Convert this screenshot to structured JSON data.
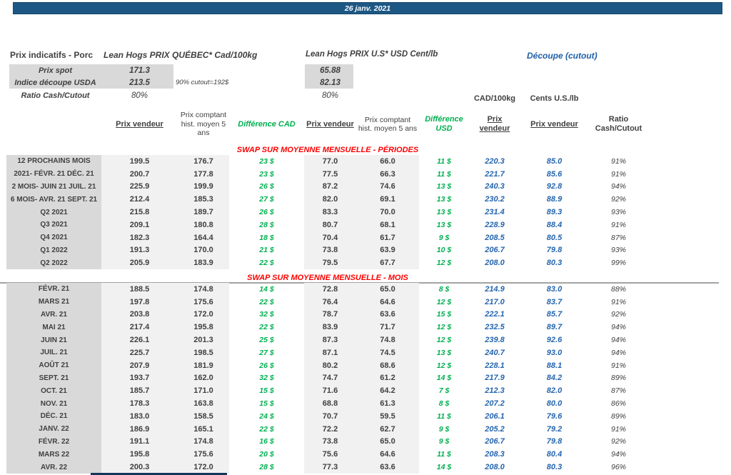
{
  "banner": {
    "date": "26 janv. 2021"
  },
  "summary": {
    "title": "Prix indicatifs - Porc",
    "quebec_title": "Lean Hogs PRIX QUÉBEC* Cad/100kg",
    "us_title": "Lean Hogs PRIX U.S* USD Cent/lb",
    "cutout_title": "Découpe (cutout)",
    "spot_label": "Prix spot",
    "spot_qc": "171.3",
    "spot_us": "65.88",
    "usda_label": "Indice découpe USDA",
    "usda_qc": "213.5",
    "usda_us": "82.13",
    "usda_note": "90% cutout=192$",
    "ratio_label": "Ratio Cash/Cutout",
    "ratio_qc": "80%",
    "ratio_us": "80%"
  },
  "units": {
    "cad": "CAD/100kg",
    "cents": "Cents U.S./lb"
  },
  "columns": {
    "pv_cad": "Prix vendeur",
    "hist_cad": "Prix comptant hist. moyen 5 ans",
    "diff_cad": "Différence CAD",
    "pv_usd": "Prix vendeur",
    "hist_usd": "Prix comptant hist. moyen 5 ans",
    "diff_usd": "Différence USD",
    "cutout_cad": "Prix vendeur",
    "cutout_cents": "Prix vendeur",
    "ratio": "Ratio Cash/Cutout"
  },
  "colors": {
    "banner_blue": "#1d5885",
    "accent_blue": "#1f5fa6",
    "value_blue": "#2565ae",
    "diff_green": "#00b050",
    "section_red": "#ff0000"
  },
  "sections": [
    {
      "title": "SWAP SUR MOYENNE MENSUELLE - PÉRIODES",
      "rows": [
        {
          "label": "12 PROCHAINS MOIS",
          "pv_cad": "199.5",
          "hist_cad": "176.7",
          "diff_cad": "23 $",
          "pv_usd": "77.0",
          "hist_usd": "66.0",
          "diff_usd": "11 $",
          "cutout_cad": "220.3",
          "cutout_cents": "85.0",
          "ratio": "91%"
        },
        {
          "label": "2021- FÉVR. 21 DÉC. 21",
          "pv_cad": "200.7",
          "hist_cad": "177.8",
          "diff_cad": "23 $",
          "pv_usd": "77.5",
          "hist_usd": "66.3",
          "diff_usd": "11 $",
          "cutout_cad": "221.7",
          "cutout_cents": "85.6",
          "ratio": "91%"
        },
        {
          "label": "2 MOIS- JUIN 21 JUIL. 21",
          "pv_cad": "225.9",
          "hist_cad": "199.9",
          "diff_cad": "26 $",
          "pv_usd": "87.2",
          "hist_usd": "74.6",
          "diff_usd": "13 $",
          "cutout_cad": "240.3",
          "cutout_cents": "92.8",
          "ratio": "94%"
        },
        {
          "label": "6 MOIS- AVR. 21 SEPT. 21",
          "pv_cad": "212.4",
          "hist_cad": "185.3",
          "diff_cad": "27 $",
          "pv_usd": "82.0",
          "hist_usd": "69.1",
          "diff_usd": "13 $",
          "cutout_cad": "230.2",
          "cutout_cents": "88.9",
          "ratio": "92%"
        },
        {
          "label": "Q2 2021",
          "pv_cad": "215.8",
          "hist_cad": "189.7",
          "diff_cad": "26 $",
          "pv_usd": "83.3",
          "hist_usd": "70.0",
          "diff_usd": "13 $",
          "cutout_cad": "231.4",
          "cutout_cents": "89.3",
          "ratio": "93%"
        },
        {
          "label": "Q3 2021",
          "pv_cad": "209.1",
          "hist_cad": "180.8",
          "diff_cad": "28 $",
          "pv_usd": "80.7",
          "hist_usd": "68.1",
          "diff_usd": "13 $",
          "cutout_cad": "228.9",
          "cutout_cents": "88.4",
          "ratio": "91%"
        },
        {
          "label": "Q4 2021",
          "pv_cad": "182.3",
          "hist_cad": "164.4",
          "diff_cad": "18 $",
          "pv_usd": "70.4",
          "hist_usd": "61.7",
          "diff_usd": "9 $",
          "cutout_cad": "208.5",
          "cutout_cents": "80.5",
          "ratio": "87%"
        },
        {
          "label": "Q1 2022",
          "pv_cad": "191.3",
          "hist_cad": "170.0",
          "diff_cad": "21 $",
          "pv_usd": "73.8",
          "hist_usd": "63.9",
          "diff_usd": "10 $",
          "cutout_cad": "206.7",
          "cutout_cents": "79.8",
          "ratio": "93%"
        },
        {
          "label": "Q2 2022",
          "pv_cad": "205.9",
          "hist_cad": "183.9",
          "diff_cad": "22 $",
          "pv_usd": "79.5",
          "hist_usd": "67.7",
          "diff_usd": "12 $",
          "cutout_cad": "208.0",
          "cutout_cents": "80.3",
          "ratio": "99%"
        }
      ]
    },
    {
      "title": "SWAP SUR MOYENNE MENSUELLE - MOIS",
      "rows": [
        {
          "label": "FÉVR. 21",
          "pv_cad": "188.5",
          "hist_cad": "174.8",
          "diff_cad": "14 $",
          "pv_usd": "72.8",
          "hist_usd": "65.0",
          "diff_usd": "8 $",
          "cutout_cad": "214.9",
          "cutout_cents": "83.0",
          "ratio": "88%"
        },
        {
          "label": "MARS 21",
          "pv_cad": "197.8",
          "hist_cad": "175.6",
          "diff_cad": "22 $",
          "pv_usd": "76.4",
          "hist_usd": "64.6",
          "diff_usd": "12 $",
          "cutout_cad": "217.0",
          "cutout_cents": "83.7",
          "ratio": "91%"
        },
        {
          "label": "AVR. 21",
          "pv_cad": "203.8",
          "hist_cad": "172.0",
          "diff_cad": "32 $",
          "pv_usd": "78.7",
          "hist_usd": "63.6",
          "diff_usd": "15 $",
          "cutout_cad": "222.1",
          "cutout_cents": "85.7",
          "ratio": "92%"
        },
        {
          "label": "MAI 21",
          "pv_cad": "217.4",
          "hist_cad": "195.8",
          "diff_cad": "22 $",
          "pv_usd": "83.9",
          "hist_usd": "71.7",
          "diff_usd": "12 $",
          "cutout_cad": "232.5",
          "cutout_cents": "89.7",
          "ratio": "94%"
        },
        {
          "label": "JUIN 21",
          "pv_cad": "226.1",
          "hist_cad": "201.3",
          "diff_cad": "25 $",
          "pv_usd": "87.3",
          "hist_usd": "74.8",
          "diff_usd": "12 $",
          "cutout_cad": "239.8",
          "cutout_cents": "92.6",
          "ratio": "94%"
        },
        {
          "label": "JUIL. 21",
          "pv_cad": "225.7",
          "hist_cad": "198.5",
          "diff_cad": "27 $",
          "pv_usd": "87.1",
          "hist_usd": "74.5",
          "diff_usd": "13 $",
          "cutout_cad": "240.7",
          "cutout_cents": "93.0",
          "ratio": "94%"
        },
        {
          "label": "AOÛT 21",
          "pv_cad": "207.9",
          "hist_cad": "181.9",
          "diff_cad": "26 $",
          "pv_usd": "80.2",
          "hist_usd": "68.6",
          "diff_usd": "12 $",
          "cutout_cad": "228.1",
          "cutout_cents": "88.1",
          "ratio": "91%"
        },
        {
          "label": "SEPT. 21",
          "pv_cad": "193.7",
          "hist_cad": "162.0",
          "diff_cad": "32 $",
          "pv_usd": "74.7",
          "hist_usd": "61.2",
          "diff_usd": "14 $",
          "cutout_cad": "217.9",
          "cutout_cents": "84.2",
          "ratio": "89%"
        },
        {
          "label": "OCT. 21",
          "pv_cad": "185.7",
          "hist_cad": "171.0",
          "diff_cad": "15 $",
          "pv_usd": "71.6",
          "hist_usd": "64.2",
          "diff_usd": "7 $",
          "cutout_cad": "212.3",
          "cutout_cents": "82.0",
          "ratio": "87%"
        },
        {
          "label": "NOV. 21",
          "pv_cad": "178.3",
          "hist_cad": "163.8",
          "diff_cad": "15 $",
          "pv_usd": "68.8",
          "hist_usd": "61.3",
          "diff_usd": "8 $",
          "cutout_cad": "207.2",
          "cutout_cents": "80.0",
          "ratio": "86%"
        },
        {
          "label": "DÉC. 21",
          "pv_cad": "183.0",
          "hist_cad": "158.5",
          "diff_cad": "24 $",
          "pv_usd": "70.7",
          "hist_usd": "59.5",
          "diff_usd": "11 $",
          "cutout_cad": "206.1",
          "cutout_cents": "79.6",
          "ratio": "89%"
        },
        {
          "label": "JANV. 22",
          "pv_cad": "186.9",
          "hist_cad": "165.1",
          "diff_cad": "22 $",
          "pv_usd": "72.2",
          "hist_usd": "62.7",
          "diff_usd": "9 $",
          "cutout_cad": "205.2",
          "cutout_cents": "79.2",
          "ratio": "91%"
        },
        {
          "label": "FÉVR. 22",
          "pv_cad": "191.1",
          "hist_cad": "174.8",
          "diff_cad": "16 $",
          "pv_usd": "73.8",
          "hist_usd": "65.0",
          "diff_usd": "9 $",
          "cutout_cad": "206.7",
          "cutout_cents": "79.8",
          "ratio": "92%"
        },
        {
          "label": "MARS 22",
          "pv_cad": "195.8",
          "hist_cad": "175.6",
          "diff_cad": "20 $",
          "pv_usd": "75.6",
          "hist_usd": "64.6",
          "diff_usd": "11 $",
          "cutout_cad": "208.3",
          "cutout_cents": "80.4",
          "ratio": "94%"
        },
        {
          "label": "AVR. 22",
          "pv_cad": "200.3",
          "hist_cad": "172.0",
          "diff_cad": "28 $",
          "pv_usd": "77.3",
          "hist_usd": "63.6",
          "diff_usd": "14 $",
          "cutout_cad": "208.0",
          "cutout_cents": "80.3",
          "ratio": "96%"
        }
      ]
    }
  ]
}
